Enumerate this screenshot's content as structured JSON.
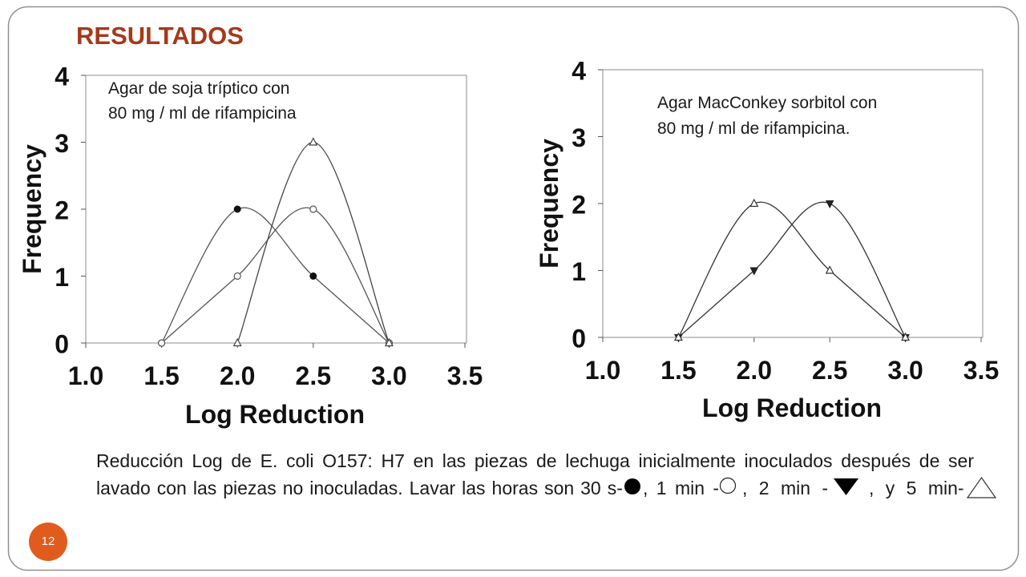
{
  "slide": {
    "title": "RESULTADOS",
    "page_number": "12",
    "colors": {
      "title": "#a5391b",
      "page_badge": "#e05c1e",
      "border": "#8f8f8f"
    }
  },
  "caption": {
    "line1": "Reducción Log de E. coli O157: H7 en las piezas de lechuga inicialmente inoculados después de ser",
    "line2": {
      "text_30s": "lavado con las piezas no inoculadas. Lavar las horas son 30 s-",
      "icon_30s": "filled-circle",
      "text_1min": ", 1 min -",
      "icon_1min": "open-circle",
      "text_2min": ", 2 min -",
      "icon_2min": "filled-inverted-triangle",
      "text_5min": ", y 5 min-",
      "icon_5min": "open-triangle"
    }
  },
  "chart_data": [
    {
      "type": "line",
      "smooth": true,
      "annotation": [
        "Agar de soja tríptico con",
        "80 mg / ml de rifampicina"
      ],
      "xlabel": "Log Reduction",
      "ylabel": "Frequency",
      "xlim": [
        1.0,
        3.5
      ],
      "ylim": [
        0,
        4
      ],
      "x_ticks": [
        1.0,
        1.5,
        2.0,
        2.5,
        3.0,
        3.5
      ],
      "x_tick_labels": [
        "1.0",
        "1.5",
        "2.0",
        "2.5",
        "3.0",
        "3.5"
      ],
      "y_ticks": [
        0,
        1,
        2,
        3,
        4
      ],
      "y_tick_labels": [
        "0",
        "1",
        "2",
        "3",
        "4"
      ],
      "grid": false,
      "series": [
        {
          "marker": "filled-circle",
          "color": "#555555",
          "x": [
            1.5,
            2.0,
            2.5,
            3.0
          ],
          "y": [
            0,
            2,
            1,
            0
          ]
        },
        {
          "marker": "open-circle",
          "color": "#555555",
          "x": [
            1.5,
            2.0,
            2.5,
            3.0
          ],
          "y": [
            0,
            1,
            2,
            0
          ]
        },
        {
          "marker": "open-triangle",
          "color": "#444444",
          "x": [
            2.0,
            2.5,
            3.0
          ],
          "y": [
            0,
            3,
            0
          ]
        }
      ]
    },
    {
      "type": "line",
      "smooth": true,
      "annotation": [
        "Agar MacConkey sorbitol con",
        "80 mg / ml de rifampicina."
      ],
      "xlabel": "Log Reduction",
      "ylabel": "Frequency",
      "xlim": [
        1.0,
        3.5
      ],
      "ylim": [
        0,
        4
      ],
      "x_ticks": [
        1.0,
        1.5,
        2.0,
        2.5,
        3.0,
        3.5
      ],
      "x_tick_labels": [
        "1.0",
        "1.5",
        "2.0",
        "2.5",
        "3.0",
        "3.5"
      ],
      "y_ticks": [
        0,
        1,
        2,
        3,
        4
      ],
      "y_tick_labels": [
        "0",
        "1",
        "2",
        "3",
        "4"
      ],
      "grid": false,
      "series": [
        {
          "marker": "filled-inverted-triangle",
          "color": "#333333",
          "x": [
            1.5,
            2.0,
            2.5,
            3.0
          ],
          "y": [
            0,
            1,
            2,
            0
          ]
        },
        {
          "marker": "open-triangle",
          "color": "#333333",
          "x": [
            1.5,
            2.0,
            2.5,
            3.0
          ],
          "y": [
            0,
            2,
            1,
            0
          ]
        }
      ]
    }
  ]
}
